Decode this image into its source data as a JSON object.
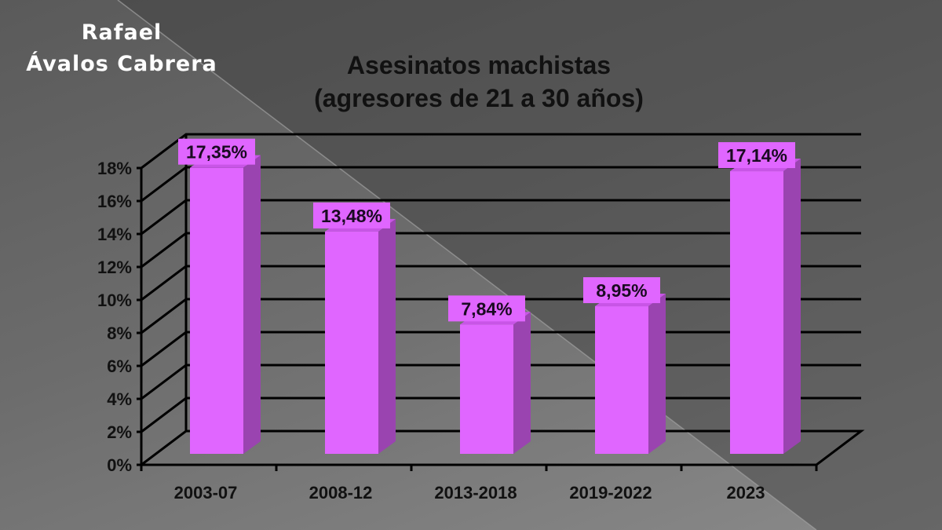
{
  "author": {
    "line1": "Rafael",
    "line2": "Ávalos Cabrera"
  },
  "chart_data": {
    "type": "bar",
    "title": "Asesinatos machistas",
    "subtitle": "(agresores de 21 a 30 años)",
    "categories": [
      "2003-07",
      "2008-12",
      "2013-2018",
      "2019-2022",
      "2023"
    ],
    "values": [
      17.35,
      13.48,
      7.84,
      8.95,
      17.14
    ],
    "data_labels": [
      "17,35%",
      "13,48%",
      "7,84%",
      "8,95%",
      "17,14%"
    ],
    "y_ticks": [
      "0%",
      "2%",
      "4%",
      "6%",
      "8%",
      "10%",
      "12%",
      "14%",
      "16%",
      "18%"
    ],
    "ylim": [
      0,
      18
    ],
    "xlabel": "",
    "ylabel": "",
    "grid": true,
    "bar_color": "#e066ff",
    "bar_side_color": "#9a44b0"
  }
}
